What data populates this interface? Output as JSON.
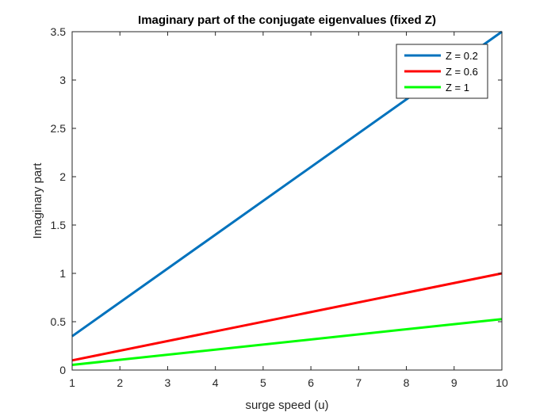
{
  "chart_data": {
    "type": "line",
    "title": "Imaginary part of the conjugate eigenvalues (fixed Z)",
    "xlabel": "surge speed (u)",
    "ylabel": "Imaginary part",
    "xlim": [
      1,
      10
    ],
    "ylim": [
      0,
      3.5
    ],
    "xticks": [
      1,
      2,
      3,
      4,
      5,
      6,
      7,
      8,
      9,
      10
    ],
    "yticks": [
      0,
      0.5,
      1,
      1.5,
      2,
      2.5,
      3,
      3.5
    ],
    "xtick_labels": [
      "1",
      "2",
      "3",
      "4",
      "5",
      "6",
      "7",
      "8",
      "9",
      "10"
    ],
    "ytick_labels": [
      "0",
      "0.5",
      "1",
      "1.5",
      "2",
      "2.5",
      "3",
      "3.5"
    ],
    "grid": false,
    "legend_position": "top-right",
    "series": [
      {
        "name": "Z = 0.2",
        "color": "#0072BD",
        "x": [
          1,
          10
        ],
        "y": [
          0.35,
          3.5
        ]
      },
      {
        "name": "Z = 0.6",
        "color": "#FF0000",
        "x": [
          1,
          10
        ],
        "y": [
          0.1,
          1.0
        ]
      },
      {
        "name": "Z = 1",
        "color": "#00FF00",
        "x": [
          1,
          10
        ],
        "y": [
          0.053,
          0.527
        ]
      }
    ]
  }
}
